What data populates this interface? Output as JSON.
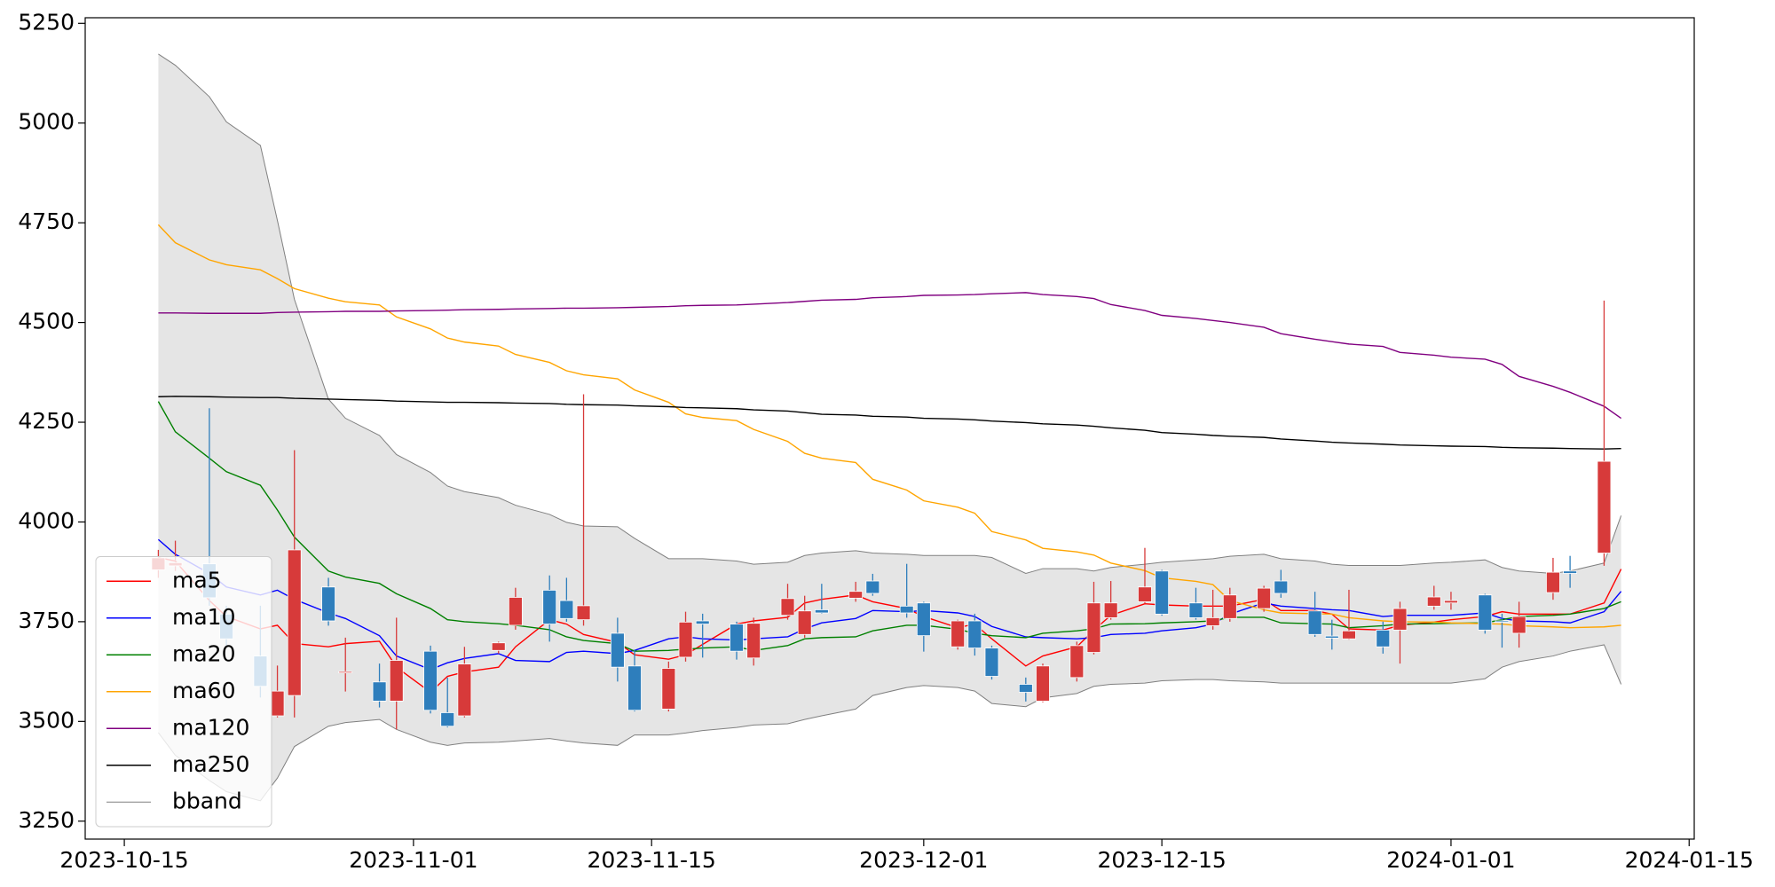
{
  "chart_data": {
    "type": "candlestick",
    "x": [
      "2023-10-17",
      "2023-10-18",
      "2023-10-20",
      "2023-10-21",
      "2023-10-23",
      "2023-10-24",
      "2023-10-25",
      "2023-10-27",
      "2023-10-28",
      "2023-10-30",
      "2023-10-31",
      "2023-11-02",
      "2023-11-03",
      "2023-11-04",
      "2023-11-06",
      "2023-11-07",
      "2023-11-09",
      "2023-11-10",
      "2023-11-11",
      "2023-11-13",
      "2023-11-14",
      "2023-11-16",
      "2023-11-17",
      "2023-11-18",
      "2023-11-20",
      "2023-11-21",
      "2023-11-23",
      "2023-11-24",
      "2023-11-25",
      "2023-11-27",
      "2023-11-28",
      "2023-11-30",
      "2023-12-01",
      "2023-12-03",
      "2023-12-04",
      "2023-12-05",
      "2023-12-07",
      "2023-12-08",
      "2023-12-10",
      "2023-12-11",
      "2023-12-12",
      "2023-12-14",
      "2023-12-15",
      "2023-12-17",
      "2023-12-18",
      "2023-12-19",
      "2023-12-21",
      "2023-12-22",
      "2023-12-24",
      "2023-12-25",
      "2023-12-26",
      "2023-12-28",
      "2023-12-29",
      "2023-12-31",
      "2024-01-01",
      "2024-01-03",
      "2024-01-04",
      "2024-01-05",
      "2024-01-07",
      "2024-01-08",
      "2024-01-10",
      "2024-01-11"
    ],
    "open": [
      3880,
      3890,
      3895,
      3769,
      3664,
      3514,
      3565,
      3837,
      3622,
      3599,
      3551,
      3676,
      3522,
      3514,
      3678,
      3741,
      3829,
      3803,
      3755,
      3721,
      3639,
      3531,
      3661,
      3752,
      3744,
      3659,
      3766,
      3718,
      3780,
      3809,
      3852,
      3789,
      3797,
      3687,
      3752,
      3684,
      3593,
      3551,
      3610,
      3673,
      3760,
      3800,
      3877,
      3797,
      3740,
      3758,
      3783,
      3852,
      3777,
      3714,
      3707,
      3729,
      3729,
      3789,
      3797,
      3817,
      3752,
      3721,
      3823,
      3877,
      3922,
      null
    ],
    "high": [
      3930,
      3953,
      4285,
      3790,
      3790,
      3640,
      4180,
      3860,
      3710,
      3645,
      3760,
      3690,
      3610,
      3687,
      3700,
      3835,
      3866,
      3860,
      4320,
      3760,
      3680,
      3650,
      3775,
      3770,
      3750,
      3760,
      3845,
      3815,
      3845,
      3850,
      3870,
      3895,
      3800,
      3755,
      3770,
      3690,
      3610,
      3645,
      3700,
      3850,
      3852,
      3935,
      3880,
      3835,
      3830,
      3835,
      3840,
      3880,
      3825,
      3755,
      3830,
      3750,
      3800,
      3840,
      3825,
      3820,
      3770,
      3800,
      3910,
      3915,
      4555,
      null
    ],
    "low": [
      3860,
      3877,
      3790,
      3690,
      3560,
      3510,
      3510,
      3740,
      3575,
      3535,
      3480,
      3520,
      3485,
      3510,
      3670,
      3730,
      3700,
      3750,
      3740,
      3600,
      3525,
      3525,
      3650,
      3660,
      3655,
      3640,
      3755,
      3710,
      3770,
      3800,
      3815,
      3760,
      3675,
      3680,
      3665,
      3605,
      3550,
      3548,
      3600,
      3668,
      3755,
      3795,
      3765,
      3755,
      3730,
      3750,
      3775,
      3810,
      3712,
      3680,
      3705,
      3670,
      3645,
      3780,
      3780,
      3720,
      3685,
      3685,
      3805,
      3835,
      3890,
      null
    ],
    "close": [
      3910,
      3898,
      3810,
      3707,
      3588,
      3576,
      3930,
      3752,
      3625,
      3551,
      3653,
      3528,
      3488,
      3644,
      3697,
      3811,
      3744,
      3758,
      3790,
      3636,
      3528,
      3633,
      3749,
      3744,
      3676,
      3746,
      3808,
      3777,
      3772,
      3826,
      3821,
      3772,
      3715,
      3752,
      3684,
      3613,
      3573,
      3639,
      3690,
      3797,
      3797,
      3837,
      3769,
      3760,
      3760,
      3817,
      3834,
      3821,
      3718,
      3709,
      3727,
      3687,
      3783,
      3812,
      3803,
      3729,
      3749,
      3763,
      3874,
      3871,
      4152,
      null
    ],
    "up_color": "#d73a3a",
    "down_color": "#2e7ebc",
    "series": [
      {
        "name": "ma5",
        "color": "#ff0000",
        "values": [
          3911,
          3902,
          3803,
          3763,
          3732,
          3741,
          3695,
          3687,
          3695,
          3701,
          3636,
          3573,
          3613,
          3624,
          3636,
          3687,
          3755,
          3744,
          3718,
          3698,
          3667,
          3656,
          3667,
          3693,
          3744,
          3752,
          3761,
          3797,
          3806,
          3817,
          3800,
          3783,
          3763,
          3735,
          3744,
          3707,
          3639,
          3664,
          3687,
          3729,
          3766,
          3795,
          3792,
          3789,
          3789,
          3789,
          3806,
          3778,
          3778,
          3769,
          3732,
          3729,
          3741,
          3749,
          3755,
          3763,
          3775,
          3769,
          3769,
          3769,
          3797,
          3882
        ]
      },
      {
        "name": "ma10",
        "color": "#0000ff",
        "values": [
          3956,
          3919,
          3871,
          3837,
          3817,
          3829,
          3806,
          3772,
          3758,
          3715,
          3664,
          3630,
          3647,
          3658,
          3670,
          3653,
          3650,
          3673,
          3676,
          3670,
          3678,
          3707,
          3712,
          3707,
          3704,
          3707,
          3712,
          3732,
          3747,
          3758,
          3778,
          3775,
          3778,
          3772,
          3763,
          3738,
          3712,
          3710,
          3707,
          3710,
          3718,
          3721,
          3727,
          3735,
          3744,
          3769,
          3797,
          3789,
          3783,
          3780,
          3778,
          3763,
          3766,
          3766,
          3766,
          3772,
          3758,
          3752,
          3750,
          3747,
          3775,
          3826
        ]
      },
      {
        "name": "ma20",
        "color": "#008000",
        "values": [
          4302,
          4226,
          4160,
          4126,
          4092,
          4030,
          3962,
          3877,
          3862,
          3846,
          3820,
          3783,
          3755,
          3750,
          3745,
          3741,
          3730,
          3712,
          3703,
          3695,
          3676,
          3678,
          3681,
          3684,
          3687,
          3678,
          3690,
          3707,
          3710,
          3712,
          3727,
          3741,
          3741,
          3731,
          3721,
          3715,
          3710,
          3721,
          3727,
          3732,
          3744,
          3745,
          3747,
          3750,
          3752,
          3761,
          3761,
          3747,
          3745,
          3744,
          3735,
          3740,
          3744,
          3745,
          3746,
          3747,
          3755,
          3763,
          3766,
          3769,
          3783,
          3800
        ]
      },
      {
        "name": "ma60",
        "color": "#ffa500",
        "values": [
          4745,
          4700,
          4657,
          4645,
          4632,
          4610,
          4585,
          4561,
          4552,
          4544,
          4514,
          4484,
          4461,
          4451,
          4441,
          4420,
          4400,
          4379,
          4369,
          4359,
          4331,
          4300,
          4271,
          4262,
          4254,
          4232,
          4202,
          4172,
          4160,
          4149,
          4107,
          4080,
          4053,
          4037,
          4022,
          3976,
          3955,
          3934,
          3925,
          3917,
          3897,
          3878,
          3860,
          3851,
          3843,
          3803,
          3780,
          3772,
          3770,
          3769,
          3760,
          3752,
          3750,
          3749,
          3747,
          3745,
          3744,
          3740,
          3737,
          3735,
          3737,
          3741
        ]
      },
      {
        "name": "ma120",
        "color": "#800080",
        "values": [
          4524,
          4524,
          4523,
          4523,
          4523,
          4525,
          4526,
          4527,
          4528,
          4528,
          4529,
          4530,
          4531,
          4532,
          4533,
          4534,
          4535,
          4536,
          4536,
          4537,
          4538,
          4540,
          4542,
          4543,
          4544,
          4546,
          4550,
          4553,
          4556,
          4558,
          4562,
          4565,
          4568,
          4569,
          4570,
          4572,
          4575,
          4570,
          4565,
          4560,
          4545,
          4530,
          4518,
          4510,
          4505,
          4500,
          4488,
          4472,
          4458,
          4452,
          4446,
          4440,
          4425,
          4418,
          4413,
          4408,
          4395,
          4365,
          4340,
          4325,
          4290,
          4260
        ]
      },
      {
        "name": "ma250",
        "color": "#000000",
        "values": [
          4314,
          4315,
          4314,
          4313,
          4312,
          4312,
          4310,
          4308,
          4307,
          4305,
          4303,
          4301,
          4300,
          4300,
          4299,
          4298,
          4297,
          4295,
          4294,
          4293,
          4291,
          4289,
          4287,
          4286,
          4284,
          4281,
          4278,
          4274,
          4270,
          4268,
          4265,
          4263,
          4260,
          4258,
          4256,
          4253,
          4249,
          4246,
          4243,
          4240,
          4236,
          4230,
          4224,
          4220,
          4217,
          4215,
          4212,
          4208,
          4203,
          4200,
          4198,
          4195,
          4193,
          4191,
          4190,
          4189,
          4187,
          4186,
          4185,
          4184,
          4183,
          4184
        ]
      }
    ],
    "band": {
      "name": "bband",
      "color": "#808080",
      "fill": "#e5e5e5",
      "upper": [
        5173,
        5145,
        5066,
        5003,
        4944,
        4756,
        4558,
        4308,
        4260,
        4217,
        4169,
        4124,
        4090,
        4076,
        4061,
        4042,
        4019,
        3999,
        3990,
        3988,
        3959,
        3908,
        3908,
        3908,
        3902,
        3894,
        3899,
        3916,
        3922,
        3928,
        3922,
        3919,
        3916,
        3916,
        3916,
        3911,
        3871,
        3883,
        3883,
        3877,
        3886,
        3894,
        3899,
        3905,
        3908,
        3914,
        3919,
        3908,
        3902,
        3894,
        3891,
        3891,
        3891,
        3897,
        3899,
        3905,
        3886,
        3877,
        3871,
        3877,
        3897,
        4016
      ],
      "lower": [
        3472,
        3415,
        3352,
        3324,
        3301,
        3358,
        3437,
        3488,
        3497,
        3505,
        3480,
        3448,
        3440,
        3446,
        3448,
        3451,
        3457,
        3451,
        3446,
        3440,
        3466,
        3466,
        3471,
        3477,
        3485,
        3491,
        3494,
        3505,
        3514,
        3531,
        3565,
        3585,
        3590,
        3585,
        3576,
        3545,
        3537,
        3559,
        3570,
        3588,
        3593,
        3596,
        3602,
        3605,
        3605,
        3602,
        3599,
        3596,
        3596,
        3596,
        3596,
        3596,
        3596,
        3596,
        3596,
        3607,
        3636,
        3650,
        3664,
        3676,
        3692,
        3593
      ]
    },
    "xlim": [
      "2023-10-12T16:48",
      "2024-01-15T07:12"
    ],
    "xticks": [
      "2023-10-15",
      "2023-11-01",
      "2023-11-15",
      "2023-12-01",
      "2023-12-15",
      "2024-01-01",
      "2024-01-15"
    ],
    "ylim": [
      3205,
      5264
    ],
    "yticks": [
      3250,
      3500,
      3750,
      4000,
      4250,
      4500,
      4750,
      5000,
      5250
    ],
    "grid": false,
    "legend": "lower left"
  }
}
